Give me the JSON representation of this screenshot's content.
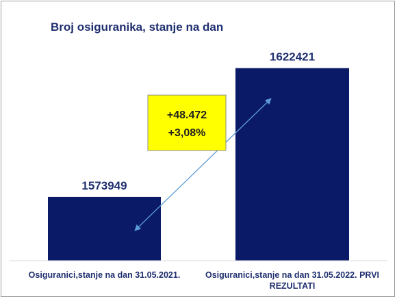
{
  "chart_data": {
    "type": "bar",
    "title": "Broj osiguranika, stanje na dan",
    "categories": [
      [
        "Osiguranici,stanje na dan 31.05.2021."
      ],
      [
        "Osiguranici,stanje na dan 31.05.2022. PRVI",
        "REZULTATI"
      ]
    ],
    "values": [
      1573949,
      1622421
    ],
    "data_labels": [
      "1573949",
      "1622421"
    ],
    "ylim": [
      1550000,
      1630000
    ],
    "grid": false,
    "legend": "none",
    "colors": {
      "bar": "#0b1a66",
      "title": "#1f2f6f",
      "arrow": "#5b9bd5",
      "callout_fill": "#ffff00"
    }
  },
  "annotation": {
    "lines": [
      "+48.472",
      "+3,08%"
    ]
  }
}
